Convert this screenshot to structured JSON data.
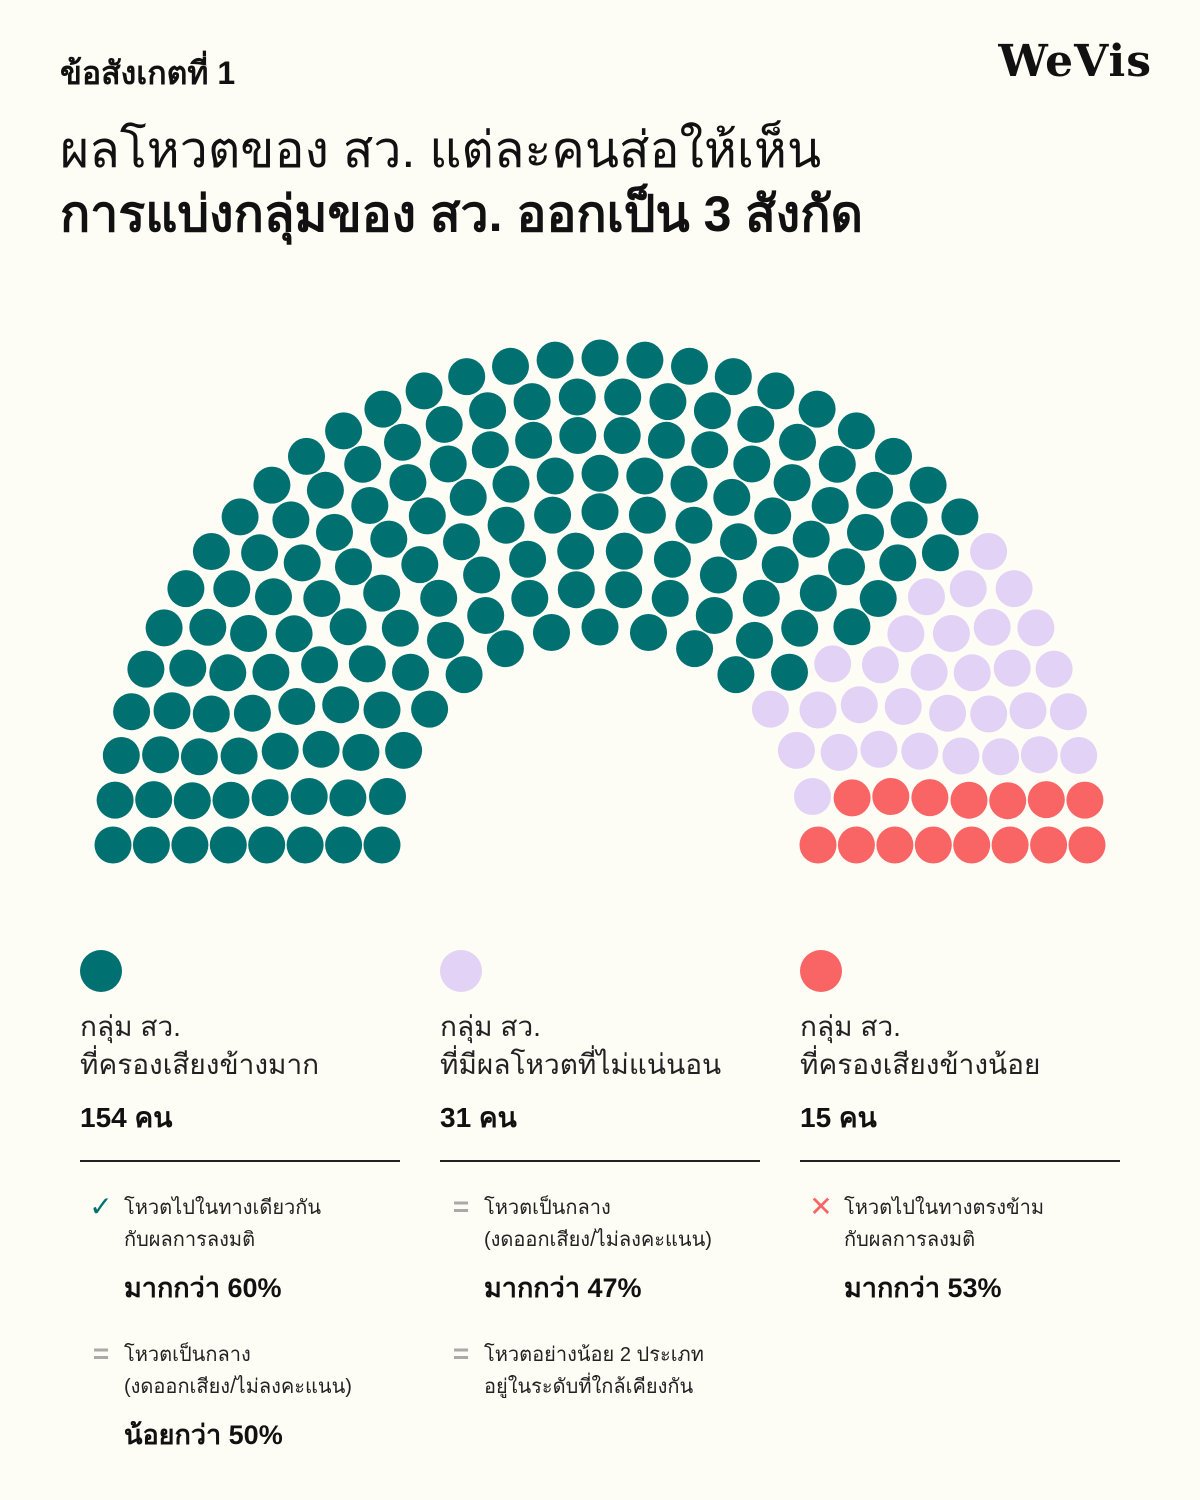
{
  "header": {
    "eyebrow": "ข้อสังเกตที่ 1",
    "brand": "WeVis",
    "headline_line1": "ผลโหวตของ สว. แต่ละคนส่อให้เห็น",
    "headline_line2": "การแบ่งกลุ่มของ สว. ออกเป็น 3 สังกัด"
  },
  "chart_data": {
    "type": "parliament",
    "total": 200,
    "series": [
      {
        "name": "กลุ่ม สว. ที่ครองเสียงข้างมาก",
        "value": 154,
        "color": "#007071"
      },
      {
        "name": "กลุ่ม สว. ที่มีผลโหวตที่ไม่แน่นอน",
        "value": 31,
        "color": "#e2d2f5"
      },
      {
        "name": "กลุ่ม สว. ที่ครองเสียงข้างน้อย",
        "value": 15,
        "color": "#f96464"
      }
    ]
  },
  "groups": [
    {
      "label": "กลุ่ม สว.\nที่ครองเสียงข้างมาก",
      "count": "154 คน",
      "color": "#007071",
      "stats": [
        {
          "icon": "check-icon",
          "glyph": "✓",
          "icon_color": "#007071",
          "text": "โหวตไปในทางเดียวกัน\nกับผลการลงมติ",
          "value": "มากกว่า 60%"
        },
        {
          "icon": "equals-icon",
          "glyph": "=",
          "icon_color": "#aaaaaa",
          "text": "โหวตเป็นกลาง\n(งดออกเสียง/ไม่ลงคะแนน)",
          "value": "น้อยกว่า 50%"
        }
      ]
    },
    {
      "label": "กลุ่ม สว.\nที่มีผลโหวตที่ไม่แน่นอน",
      "count": "31 คน",
      "color": "#e2d2f5",
      "stats": [
        {
          "icon": "equals-icon",
          "glyph": "=",
          "icon_color": "#aaaaaa",
          "text": "โหวตเป็นกลาง\n(งดออกเสียง/ไม่ลงคะแนน)",
          "value": "มากกว่า 47%"
        },
        {
          "icon": "equals-icon",
          "glyph": "=",
          "icon_color": "#aaaaaa",
          "text": "โหวตอย่างน้อย 2 ประเภท\nอยู่ในระดับที่ใกล้เคียงกัน",
          "value": ""
        }
      ]
    },
    {
      "label": "กลุ่ม สว.\nที่ครองเสียงข้างน้อย",
      "count": "15 คน",
      "color": "#f96464",
      "stats": [
        {
          "icon": "cross-icon",
          "glyph": "✕",
          "icon_color": "#f96464",
          "text": "โหวตไปในทางตรงข้าม\nกับผลการลงมติ",
          "value": "มากกว่า 53%"
        }
      ]
    }
  ]
}
